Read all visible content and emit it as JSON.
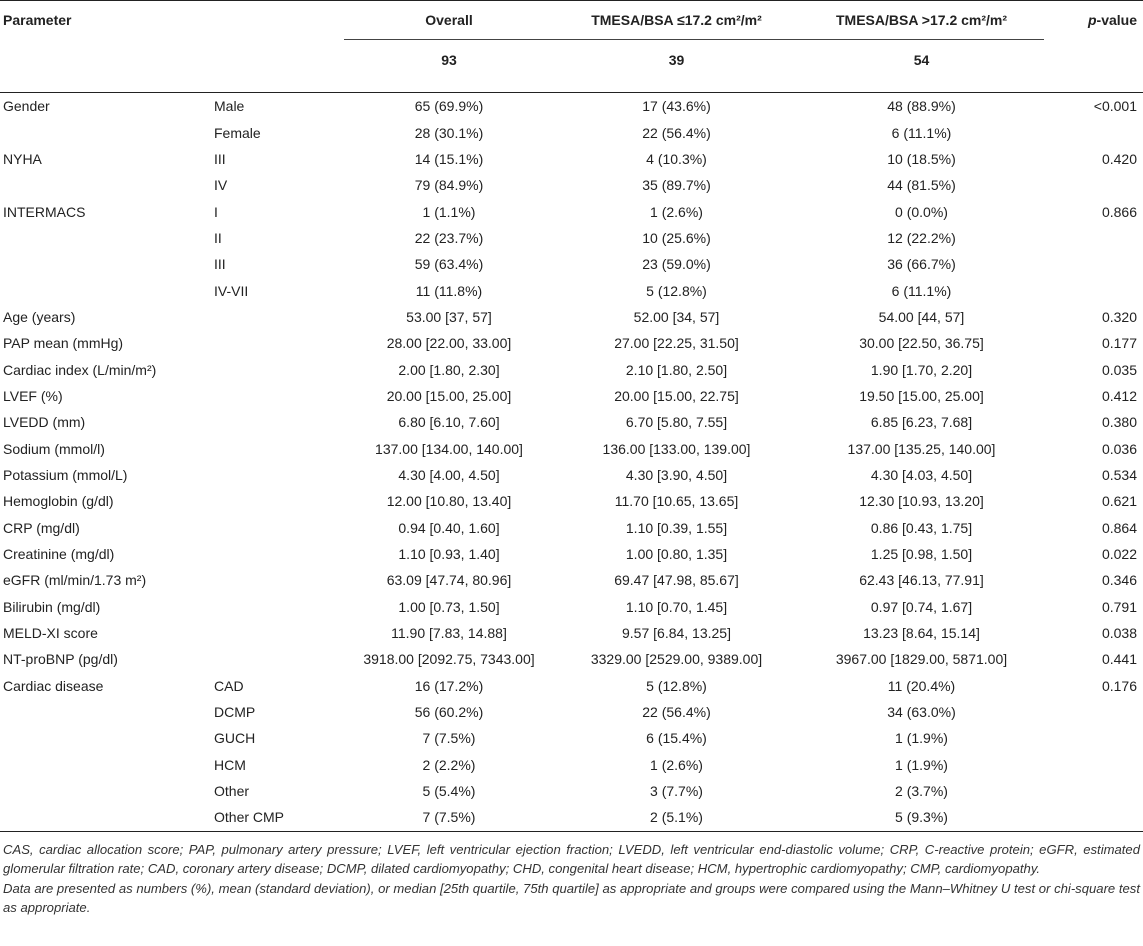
{
  "table": {
    "headers": {
      "parameter": "Parameter",
      "overall": "Overall",
      "low_group": "TMESA/BSA ≤17.2 cm²/m²",
      "high_group": "TMESA/BSA >17.2 cm²/m²",
      "p_value_italic": "p",
      "p_value_rest": "-value"
    },
    "counts": {
      "overall": "93",
      "low": "39",
      "high": "54"
    },
    "rows": [
      {
        "param": "Gender",
        "sub": "Male",
        "overall": "65 (69.9%)",
        "low": "17 (43.6%)",
        "high": "48 (88.9%)",
        "p": "<0.001"
      },
      {
        "param": "",
        "sub": "Female",
        "overall": "28 (30.1%)",
        "low": "22 (56.4%)",
        "high": "6 (11.1%)",
        "p": ""
      },
      {
        "param": "NYHA",
        "sub": "III",
        "overall": "14 (15.1%)",
        "low": "4 (10.3%)",
        "high": "10 (18.5%)",
        "p": "0.420"
      },
      {
        "param": "",
        "sub": "IV",
        "overall": "79 (84.9%)",
        "low": "35 (89.7%)",
        "high": "44 (81.5%)",
        "p": ""
      },
      {
        "param": "INTERMACS",
        "sub": "I",
        "overall": "1 (1.1%)",
        "low": "1 (2.6%)",
        "high": "0 (0.0%)",
        "p": "0.866"
      },
      {
        "param": "",
        "sub": "II",
        "overall": "22 (23.7%)",
        "low": "10 (25.6%)",
        "high": "12 (22.2%)",
        "p": ""
      },
      {
        "param": "",
        "sub": "III",
        "overall": "59 (63.4%)",
        "low": "23 (59.0%)",
        "high": "36 (66.7%)",
        "p": ""
      },
      {
        "param": "",
        "sub": "IV-VII",
        "overall": "11 (11.8%)",
        "low": "5 (12.8%)",
        "high": "6 (11.1%)",
        "p": ""
      },
      {
        "param": "Age (years)",
        "sub": "",
        "overall": "53.00 [37, 57]",
        "low": "52.00 [34, 57]",
        "high": "54.00 [44, 57]",
        "p": "0.320"
      },
      {
        "param": "PAP mean (mmHg)",
        "sub": "",
        "overall": "28.00 [22.00, 33.00]",
        "low": "27.00 [22.25, 31.50]",
        "high": "30.00 [22.50, 36.75]",
        "p": "0.177"
      },
      {
        "param": "Cardiac index (L/min/m²)",
        "sub": "",
        "overall": "2.00 [1.80, 2.30]",
        "low": "2.10 [1.80, 2.50]",
        "high": "1.90 [1.70, 2.20]",
        "p": "0.035"
      },
      {
        "param": "LVEF (%)",
        "sub": "",
        "overall": "20.00 [15.00, 25.00]",
        "low": "20.00 [15.00, 22.75]",
        "high": "19.50 [15.00, 25.00]",
        "p": "0.412"
      },
      {
        "param": "LVEDD (mm)",
        "sub": "",
        "overall": "6.80 [6.10, 7.60]",
        "low": "6.70 [5.80, 7.55]",
        "high": "6.85 [6.23, 7.68]",
        "p": "0.380"
      },
      {
        "param": "Sodium (mmol/l)",
        "sub": "",
        "overall": "137.00 [134.00, 140.00]",
        "low": "136.00 [133.00, 139.00]",
        "high": "137.00 [135.25, 140.00]",
        "p": "0.036"
      },
      {
        "param": "Potassium (mmol/L)",
        "sub": "",
        "overall": "4.30 [4.00, 4.50]",
        "low": "4.30 [3.90, 4.50]",
        "high": "4.30 [4.03, 4.50]",
        "p": "0.534"
      },
      {
        "param": "Hemoglobin (g/dl)",
        "sub": "",
        "overall": "12.00 [10.80, 13.40]",
        "low": "11.70 [10.65, 13.65]",
        "high": "12.30 [10.93, 13.20]",
        "p": "0.621"
      },
      {
        "param": "CRP (mg/dl)",
        "sub": "",
        "overall": "0.94 [0.40, 1.60]",
        "low": "1.10 [0.39, 1.55]",
        "high": "0.86 [0.43, 1.75]",
        "p": "0.864"
      },
      {
        "param": "Creatinine (mg/dl)",
        "sub": "",
        "overall": "1.10 [0.93, 1.40]",
        "low": "1.00 [0.80, 1.35]",
        "high": "1.25 [0.98, 1.50]",
        "p": "0.022"
      },
      {
        "param": "eGFR (ml/min/1.73 m²)",
        "sub": "",
        "overall": "63.09 [47.74, 80.96]",
        "low": "69.47 [47.98, 85.67]",
        "high": "62.43 [46.13, 77.91]",
        "p": "0.346"
      },
      {
        "param": "Bilirubin (mg/dl)",
        "sub": "",
        "overall": "1.00 [0.73, 1.50]",
        "low": "1.10 [0.70, 1.45]",
        "high": "0.97 [0.74, 1.67]",
        "p": "0.791"
      },
      {
        "param": "MELD-XI score",
        "sub": "",
        "overall": "11.90 [7.83, 14.88]",
        "low": "9.57 [6.84, 13.25]",
        "high": "13.23 [8.64, 15.14]",
        "p": "0.038"
      },
      {
        "param": "NT-proBNP (pg/dl)",
        "sub": "",
        "overall": "3918.00 [2092.75, 7343.00]",
        "low": "3329.00 [2529.00, 9389.00]",
        "high": "3967.00 [1829.00, 5871.00]",
        "p": "0.441"
      },
      {
        "param": "Cardiac disease",
        "sub": "CAD",
        "overall": "16 (17.2%)",
        "low": "5 (12.8%)",
        "high": "11 (20.4%)",
        "p": "0.176"
      },
      {
        "param": "",
        "sub": "DCMP",
        "overall": "56 (60.2%)",
        "low": "22 (56.4%)",
        "high": "34 (63.0%)",
        "p": ""
      },
      {
        "param": "",
        "sub": "GUCH",
        "overall": "7 (7.5%)",
        "low": "6 (15.4%)",
        "high": "1 (1.9%)",
        "p": ""
      },
      {
        "param": "",
        "sub": "HCM",
        "overall": "2 (2.2%)",
        "low": "1 (2.6%)",
        "high": "1 (1.9%)",
        "p": ""
      },
      {
        "param": "",
        "sub": "Other",
        "overall": "5 (5.4%)",
        "low": "3 (7.7%)",
        "high": "2 (3.7%)",
        "p": ""
      },
      {
        "param": "",
        "sub": "Other CMP",
        "overall": "7 (7.5%)",
        "low": "2 (5.1%)",
        "high": "5 (9.3%)",
        "p": ""
      }
    ]
  },
  "footnotes": {
    "abbreviations": "CAS, cardiac allocation score; PAP, pulmonary artery pressure; LVEF, left ventricular ejection fraction; LVEDD, left ventricular end-diastolic volume; CRP, C-reactive protein; eGFR, estimated glomerular filtration rate; CAD, coronary artery disease; DCMP, dilated cardiomyopathy; CHD, congenital heart disease; HCM, hypertrophic cardiomyopathy; CMP, cardiomyopathy.",
    "methods": "Data are presented as numbers (%), mean (standard deviation), or median [25th quartile, 75th quartile] as appropriate and groups were compared using the Mann–Whitney U test or chi-square test as appropriate."
  }
}
